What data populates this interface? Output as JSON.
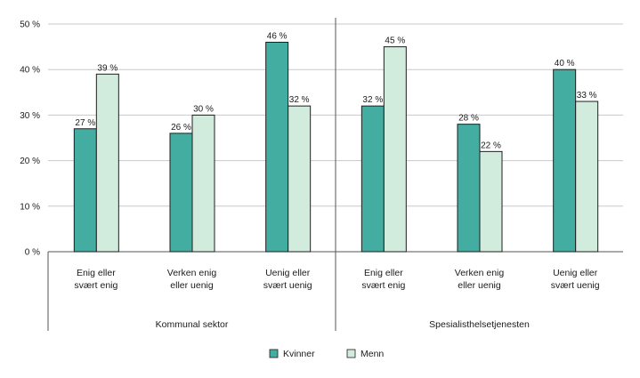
{
  "chart_data": {
    "type": "bar",
    "ylim": [
      0,
      50
    ],
    "y_ticks": [
      "0 %",
      "10 %",
      "20 %",
      "30 %",
      "40 %",
      "50 %"
    ],
    "grid": true,
    "legend_position": "bottom",
    "groups": [
      {
        "label": "Kommunal sektor",
        "categories": [
          [
            "Enig eller",
            "svært enig"
          ],
          [
            "Verken enig",
            "eller uenig"
          ],
          [
            "Uenig eller",
            "svært uenig"
          ]
        ]
      },
      {
        "label": "Spesialisthelsetjenesten",
        "categories": [
          [
            "Enig eller",
            "svært enig"
          ],
          [
            "Verken enig",
            "eller uenig"
          ],
          [
            "Uenig eller",
            "svært uenig"
          ]
        ]
      }
    ],
    "series": [
      {
        "name": "Kvinner",
        "color": "#44ada1",
        "values": [
          27,
          26,
          46,
          32,
          28,
          40
        ]
      },
      {
        "name": "Menn",
        "color": "#d1ebdc",
        "values": [
          39,
          30,
          32,
          45,
          22,
          33
        ]
      }
    ],
    "value_suffix": " %"
  }
}
